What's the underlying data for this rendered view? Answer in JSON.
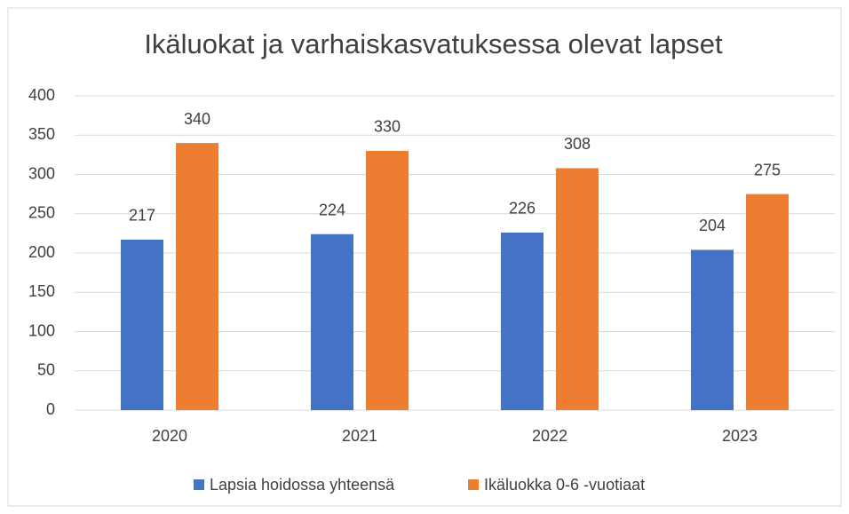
{
  "chart_data": {
    "type": "bar",
    "title": "Ikäluokat ja varhaiskasvatuksessa olevat lapset",
    "categories": [
      "2020",
      "2021",
      "2022",
      "2023"
    ],
    "series": [
      {
        "name": "Lapsia hoidossa yhteensä",
        "color": "#4472c4",
        "values": [
          217,
          224,
          226,
          204
        ]
      },
      {
        "name": "Ikäluokka 0-6 -vuotiaat",
        "color": "#ed7d31",
        "values": [
          340,
          330,
          308,
          275
        ]
      }
    ],
    "ylim": [
      0,
      400
    ],
    "yticks": [
      0,
      50,
      100,
      150,
      200,
      250,
      300,
      350,
      400
    ],
    "grid": true,
    "legend": "bottom"
  }
}
